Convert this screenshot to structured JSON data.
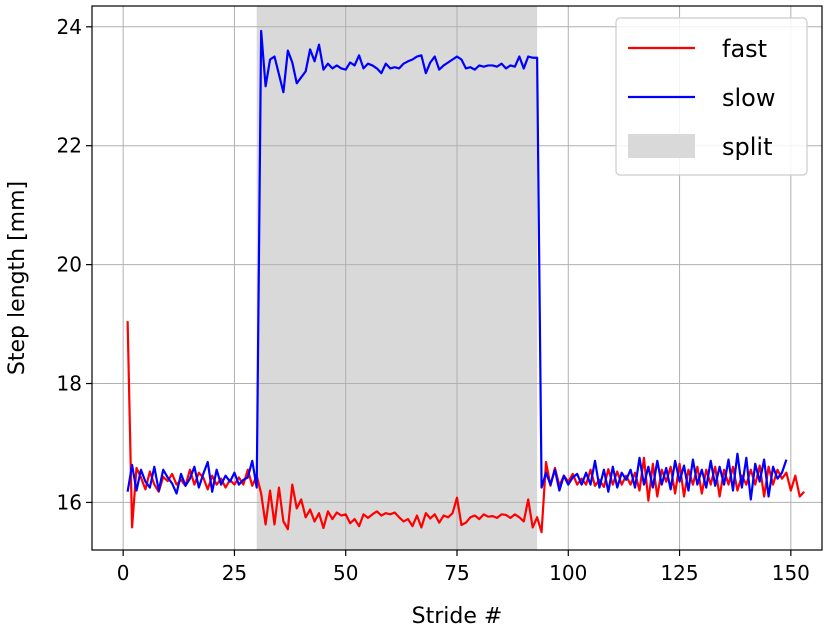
{
  "chart_data": {
    "type": "line",
    "xlabel": "Stride #",
    "ylabel": "Step length [mm]",
    "xlim": [
      -7,
      157
    ],
    "ylim": [
      15.2,
      24.35
    ],
    "xticks": [
      0,
      25,
      50,
      75,
      100,
      125,
      150
    ],
    "yticks": [
      16,
      18,
      20,
      22,
      24
    ],
    "grid": true,
    "legend_position": "top-right",
    "shaded_region": {
      "name": "split",
      "x_start": 30,
      "x_end": 93,
      "color": "#d9d9d9"
    },
    "series": [
      {
        "name": "fast",
        "color": "#ff0000",
        "x_start": 1,
        "values": [
          19.05,
          15.58,
          16.58,
          16.42,
          16.22,
          16.52,
          16.3,
          16.18,
          16.43,
          16.36,
          16.48,
          16.3,
          16.38,
          16.28,
          16.55,
          16.3,
          16.5,
          16.42,
          16.22,
          16.45,
          16.3,
          16.4,
          16.25,
          16.38,
          16.3,
          16.42,
          16.3,
          16.55,
          16.28,
          16.45,
          16.15,
          15.63,
          16.2,
          15.63,
          16.25,
          15.68,
          15.55,
          16.3,
          15.9,
          16.05,
          15.75,
          15.88,
          15.68,
          15.82,
          15.57,
          15.85,
          15.72,
          15.83,
          15.78,
          15.8,
          15.65,
          15.72,
          15.6,
          15.8,
          15.74,
          15.8,
          15.85,
          15.78,
          15.82,
          15.8,
          15.83,
          15.75,
          15.68,
          15.72,
          15.6,
          15.78,
          15.58,
          15.82,
          15.73,
          15.8,
          15.66,
          15.78,
          15.75,
          15.82,
          16.08,
          15.62,
          15.66,
          15.75,
          15.78,
          15.72,
          15.8,
          15.76,
          15.77,
          15.74,
          15.8,
          15.79,
          15.74,
          15.8,
          15.75,
          15.68,
          16.05,
          15.58,
          15.75,
          15.5,
          16.68,
          16.28,
          16.58,
          16.28,
          16.45,
          16.35,
          16.48,
          16.3,
          16.4,
          16.3,
          16.55,
          16.28,
          16.38,
          16.26,
          16.56,
          16.3,
          16.52,
          16.3,
          16.45,
          16.3,
          16.5,
          16.2,
          16.75,
          16.03,
          16.65,
          16.1,
          16.55,
          16.35,
          16.6,
          16.15,
          16.65,
          16.1,
          16.55,
          16.3,
          16.6,
          16.15,
          16.55,
          16.3,
          16.6,
          16.1,
          16.55,
          16.3,
          16.6,
          16.2,
          16.45,
          16.3,
          16.55,
          16.3,
          16.62,
          16.1,
          16.6,
          16.3,
          16.55,
          16.4,
          16.5,
          16.2,
          16.45,
          16.1,
          16.18
        ]
      },
      {
        "name": "slow",
        "color": "#0000ff",
        "x_start": 1,
        "values": [
          16.18,
          16.63,
          16.2,
          16.55,
          16.35,
          16.25,
          16.6,
          16.2,
          16.55,
          16.42,
          16.32,
          16.15,
          16.48,
          16.28,
          16.4,
          16.6,
          16.25,
          16.48,
          16.68,
          16.18,
          16.55,
          16.3,
          16.45,
          16.35,
          16.5,
          16.3,
          16.38,
          16.42,
          16.7,
          16.25,
          23.93,
          23.0,
          23.45,
          23.5,
          23.2,
          22.9,
          23.6,
          23.4,
          23.05,
          23.15,
          23.25,
          23.62,
          23.42,
          23.7,
          23.28,
          23.38,
          23.3,
          23.35,
          23.3,
          23.28,
          23.4,
          23.35,
          23.52,
          23.3,
          23.38,
          23.35,
          23.3,
          23.22,
          23.38,
          23.3,
          23.32,
          23.3,
          23.38,
          23.42,
          23.45,
          23.5,
          23.52,
          23.22,
          23.4,
          23.5,
          23.28,
          23.35,
          23.4,
          23.45,
          23.5,
          23.45,
          23.3,
          23.32,
          23.28,
          23.35,
          23.33,
          23.35,
          23.35,
          23.33,
          23.38,
          23.3,
          23.35,
          23.33,
          23.5,
          23.3,
          23.5,
          23.48,
          23.48,
          16.25,
          16.5,
          16.3,
          16.55,
          16.2,
          16.45,
          16.3,
          16.42,
          16.48,
          16.3,
          16.5,
          16.3,
          16.7,
          16.25,
          16.55,
          16.18,
          16.6,
          16.25,
          16.5,
          16.38,
          16.55,
          16.25,
          16.75,
          16.3,
          16.6,
          16.25,
          16.7,
          16.3,
          16.58,
          16.22,
          16.7,
          16.35,
          16.62,
          16.2,
          16.72,
          16.3,
          16.55,
          16.25,
          16.7,
          16.28,
          16.6,
          16.3,
          16.72,
          16.2,
          16.82,
          16.25,
          16.75,
          16.05,
          16.65,
          16.35,
          16.72,
          16.1,
          16.6,
          16.4,
          16.5,
          16.72
        ]
      }
    ]
  }
}
